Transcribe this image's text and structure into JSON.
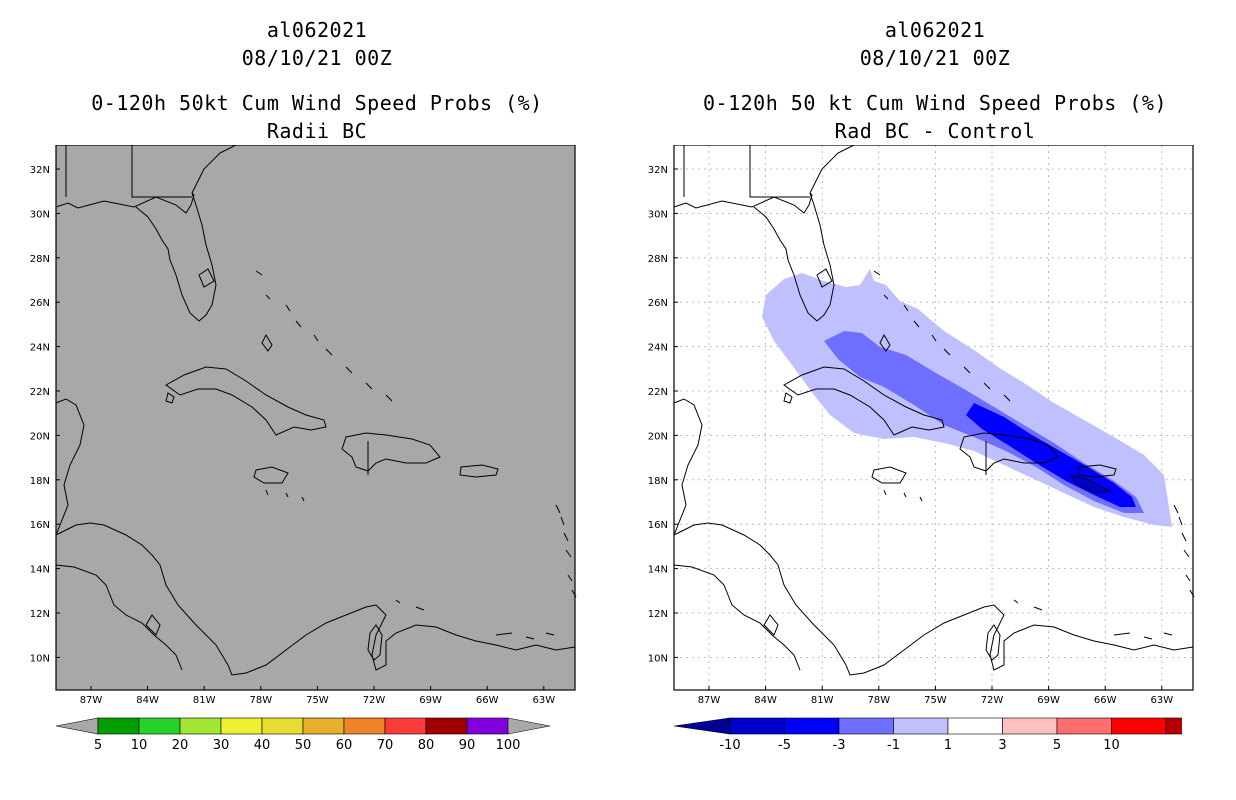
{
  "left_panel": {
    "storm_id": "al062021",
    "datetime": "08/10/21 00Z",
    "product": "0-120h 50kt Cum Wind Speed Probs (%)",
    "subtitle": "Radii BC",
    "fill_color": "#a8a8a8",
    "colorbar": {
      "labels": [
        "5",
        "10",
        "20",
        "30",
        "40",
        "50",
        "60",
        "70",
        "80",
        "90",
        "100"
      ],
      "colors": [
        "#009e00",
        "#28d228",
        "#a0e632",
        "#f0f032",
        "#e6dc32",
        "#e6af2d",
        "#f08228",
        "#fa3c3c",
        "#a00000",
        "#8200dc"
      ],
      "end_color": "#a8a8a8"
    }
  },
  "right_panel": {
    "storm_id": "al062021",
    "datetime": "08/10/21 00Z",
    "product": "0-120h 50 kt Cum Wind Speed Probs (%)",
    "subtitle": "Rad BC - Control",
    "colorbar": {
      "labels": [
        "-10",
        "-5",
        "-3",
        "-1",
        "1",
        "3",
        "5",
        "10"
      ],
      "colors": [
        "#0000cd",
        "#0000ff",
        "#6e6eff",
        "#c0c0ff",
        "#ffffff",
        "#ffc0c0",
        "#ff6e6e",
        "#ff0000",
        "#b40000"
      ],
      "left_end_color": "#000096",
      "right_end_color": "#8b0000"
    }
  },
  "map": {
    "lat_labels": [
      "32N",
      "30N",
      "28N",
      "26N",
      "24N",
      "22N",
      "20N",
      "18N",
      "16N",
      "14N",
      "12N",
      "10N"
    ],
    "lon_labels": [
      "87W",
      "84W",
      "81W",
      "78W",
      "75W",
      "72W",
      "69W",
      "66W",
      "63W"
    ]
  }
}
